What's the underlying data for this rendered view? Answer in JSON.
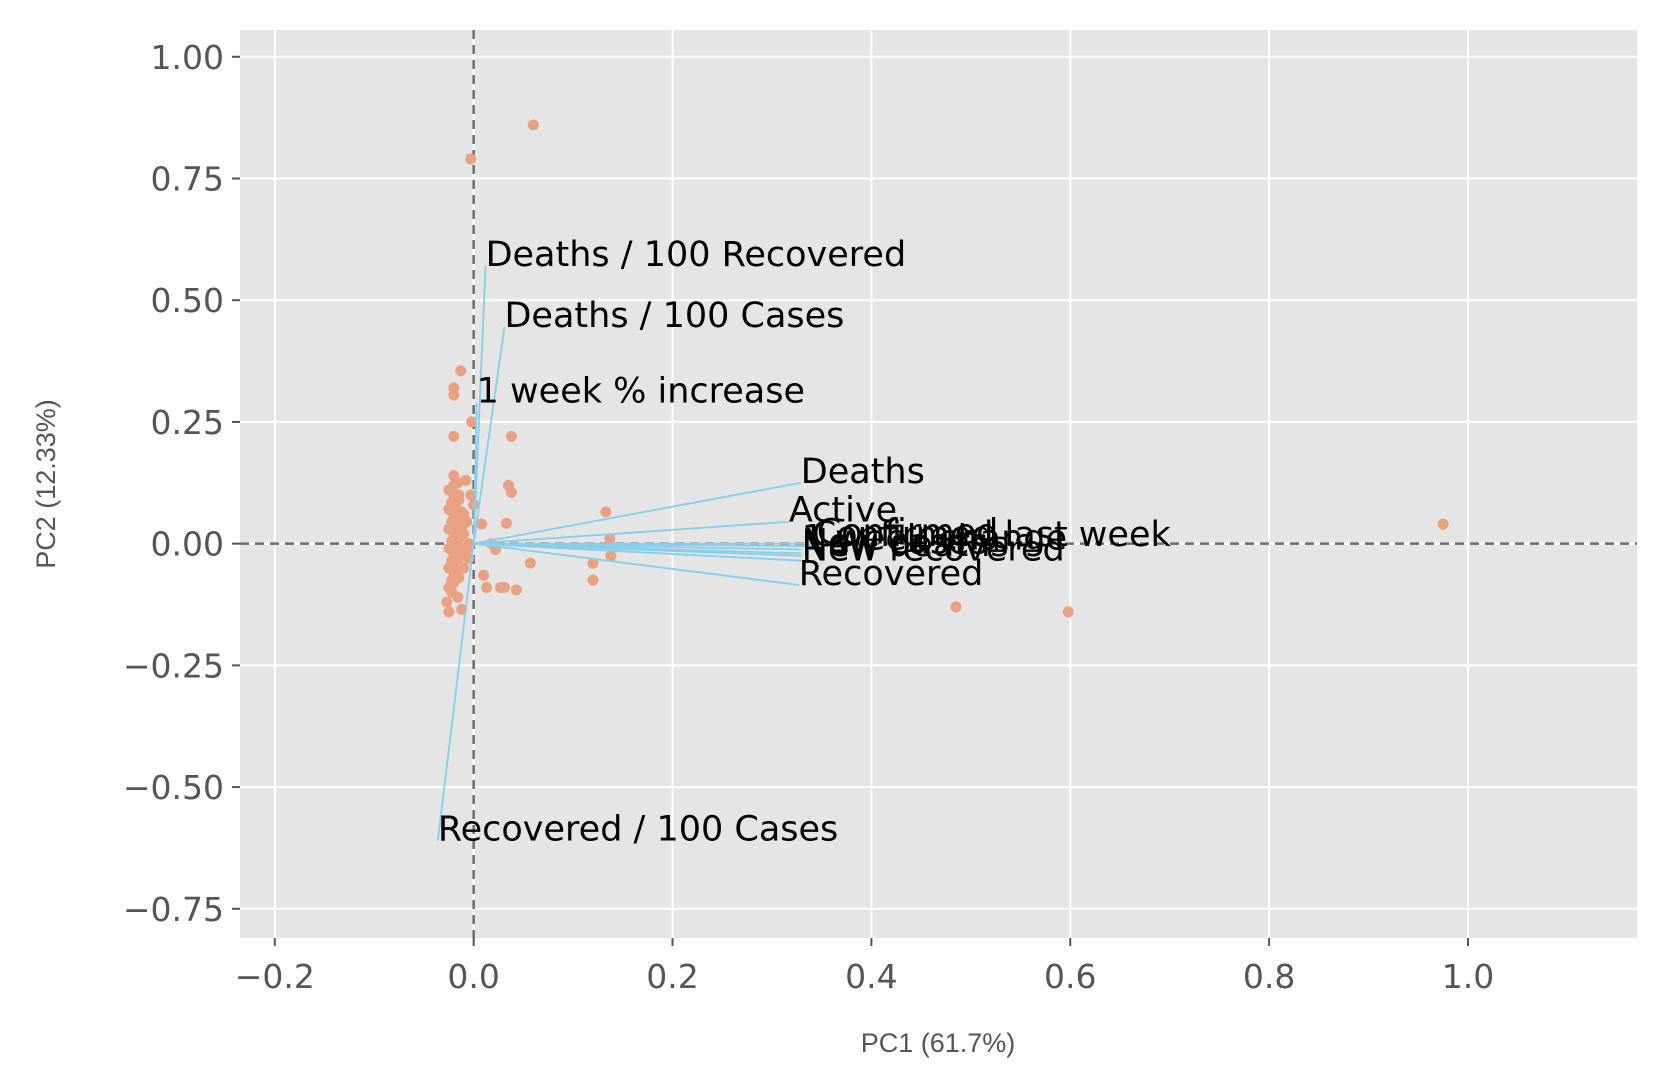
{
  "chart_data": {
    "type": "scatter",
    "title": "",
    "xlabel": "PC1 (61.7%)",
    "ylabel": "PC2 (12.33%)",
    "xlim": [
      -0.235,
      1.17
    ],
    "ylim": [
      -0.81,
      1.055
    ],
    "xticks": [
      -0.2,
      0.0,
      0.2,
      0.4,
      0.6,
      0.8,
      1.0
    ],
    "xtick_labels": [
      "−0.2",
      "0.0",
      "0.2",
      "0.4",
      "0.6",
      "0.8",
      "1.0"
    ],
    "yticks": [
      -0.75,
      -0.5,
      -0.25,
      0.0,
      0.25,
      0.5,
      0.75,
      1.0
    ],
    "ytick_labels": [
      "−0.75",
      "−0.50",
      "−0.25",
      "0.00",
      "0.25",
      "0.50",
      "0.75",
      "1.00"
    ],
    "grid": true,
    "reference_lines": {
      "x": 0,
      "y": 0,
      "style": "dashed"
    },
    "colors": {
      "background": "#e5e5e5",
      "grid": "#ffffff",
      "points": "#e8a183",
      "vectors": "#87ceeb",
      "reference": "#6e6e6e",
      "text": "#000000"
    },
    "points": [
      {
        "x": 0.975,
        "y": 0.04
      },
      {
        "x": 0.598,
        "y": -0.14
      },
      {
        "x": 0.485,
        "y": -0.13
      },
      {
        "x": 0.06,
        "y": 0.86
      },
      {
        "x": -0.003,
        "y": 0.79
      },
      {
        "x": -0.013,
        "y": 0.355
      },
      {
        "x": -0.02,
        "y": 0.32
      },
      {
        "x": -0.02,
        "y": 0.305
      },
      {
        "x": -0.002,
        "y": 0.25
      },
      {
        "x": -0.02,
        "y": 0.22
      },
      {
        "x": 0.038,
        "y": 0.22
      },
      {
        "x": 0.035,
        "y": 0.12
      },
      {
        "x": 0.038,
        "y": 0.105
      },
      {
        "x": 0.133,
        "y": 0.065
      },
      {
        "x": 0.137,
        "y": 0.01
      },
      {
        "x": 0.138,
        "y": -0.025
      },
      {
        "x": 0.12,
        "y": -0.04
      },
      {
        "x": 0.12,
        "y": -0.075
      },
      {
        "x": 0.057,
        "y": -0.04
      },
      {
        "x": 0.043,
        "y": -0.095
      },
      {
        "x": 0.013,
        "y": -0.09
      },
      {
        "x": 0.027,
        "y": -0.09
      },
      {
        "x": 0.031,
        "y": -0.09
      },
      {
        "x": 0.01,
        "y": -0.065
      },
      {
        "x": 0.018,
        "y": 0.0
      },
      {
        "x": 0.022,
        "y": -0.012
      },
      {
        "x": 0.033,
        "y": 0.042
      },
      {
        "x": 0.008,
        "y": 0.04
      },
      {
        "x": -0.003,
        "y": 0.1
      },
      {
        "x": 0.0,
        "y": 0.08
      },
      {
        "x": -0.01,
        "y": 0.06
      },
      {
        "x": -0.012,
        "y": 0.035
      },
      {
        "x": -0.015,
        "y": 0.1
      },
      {
        "x": -0.008,
        "y": 0.13
      },
      {
        "x": -0.012,
        "y": -0.135
      },
      {
        "x": -0.025,
        "y": -0.14
      },
      {
        "x": -0.027,
        "y": -0.12
      },
      {
        "x": -0.022,
        "y": -0.1
      },
      {
        "x": -0.02,
        "y": 0.14
      },
      {
        "x": -0.02,
        "y": 0.12
      },
      {
        "x": -0.02,
        "y": 0.1
      },
      {
        "x": -0.02,
        "y": 0.08
      },
      {
        "x": -0.02,
        "y": 0.06
      },
      {
        "x": -0.02,
        "y": 0.04
      },
      {
        "x": -0.02,
        "y": 0.02
      },
      {
        "x": -0.02,
        "y": 0.0
      },
      {
        "x": -0.02,
        "y": -0.02
      },
      {
        "x": -0.02,
        "y": -0.04
      },
      {
        "x": -0.02,
        "y": -0.06
      },
      {
        "x": -0.02,
        "y": -0.08
      },
      {
        "x": -0.025,
        "y": 0.11
      },
      {
        "x": -0.025,
        "y": 0.07
      },
      {
        "x": -0.025,
        "y": 0.03
      },
      {
        "x": -0.025,
        "y": -0.01
      },
      {
        "x": -0.025,
        "y": -0.05
      },
      {
        "x": -0.025,
        "y": -0.09
      },
      {
        "x": -0.015,
        "y": 0.09
      },
      {
        "x": -0.015,
        "y": 0.05
      },
      {
        "x": -0.015,
        "y": 0.01
      },
      {
        "x": -0.015,
        "y": -0.03
      },
      {
        "x": -0.015,
        "y": -0.07
      },
      {
        "x": -0.01,
        "y": 0.02
      },
      {
        "x": -0.01,
        "y": -0.02
      },
      {
        "x": -0.01,
        "y": -0.05
      },
      {
        "x": -0.005,
        "y": 0.0
      },
      {
        "x": -0.005,
        "y": -0.03
      },
      {
        "x": -0.018,
        "y": 0.075
      },
      {
        "x": -0.018,
        "y": 0.035
      },
      {
        "x": -0.018,
        "y": -0.015
      },
      {
        "x": -0.018,
        "y": -0.055
      },
      {
        "x": -0.022,
        "y": 0.085
      },
      {
        "x": -0.022,
        "y": 0.045
      },
      {
        "x": -0.022,
        "y": 0.005
      },
      {
        "x": -0.022,
        "y": -0.035
      },
      {
        "x": -0.022,
        "y": -0.075
      },
      {
        "x": -0.012,
        "y": 0.065
      },
      {
        "x": -0.012,
        "y": -0.01
      },
      {
        "x": -0.007,
        "y": 0.045
      },
      {
        "x": -0.007,
        "y": -0.012
      },
      {
        "x": -0.016,
        "y": 0.125
      },
      {
        "x": -0.016,
        "y": -0.11
      }
    ],
    "vectors": [
      {
        "label": "Deaths / 100 Recovered",
        "x": 0.012,
        "y": 0.57
      },
      {
        "label": "Deaths / 100 Cases",
        "x": 0.031,
        "y": 0.445
      },
      {
        "label": "1 week % increase",
        "x": 0.003,
        "y": 0.29
      },
      {
        "label": "Deaths",
        "x": 0.329,
        "y": 0.125
      },
      {
        "label": "Active",
        "x": 0.317,
        "y": 0.045
      },
      {
        "label": "Confirmed last week",
        "x": 0.34,
        "y": -0.005
      },
      {
        "label": "1 week change",
        "x": 0.33,
        "y": -0.012
      },
      {
        "label": "Confirmed",
        "x": 0.345,
        "y": 0.0
      },
      {
        "label": "New cases",
        "x": 0.33,
        "y": -0.02
      },
      {
        "label": "New deaths",
        "x": 0.33,
        "y": -0.025
      },
      {
        "label": "New recovered",
        "x": 0.33,
        "y": -0.035
      },
      {
        "label": "Recovered",
        "x": 0.327,
        "y": -0.085
      },
      {
        "label": "Recovered / 100 Cases",
        "x": -0.036,
        "y": -0.61
      }
    ]
  }
}
